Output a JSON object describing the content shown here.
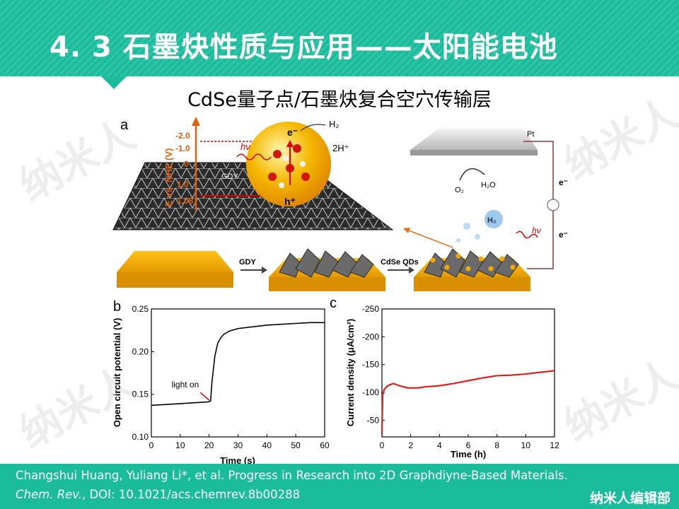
{
  "header": {
    "title": "4. 3  石墨炔性质与应用——太阳能电池"
  },
  "subtitle": "CdSe量子点/石墨炔复合空穴传输层",
  "watermark": "纳米人",
  "schematic": {
    "panel_label": "a",
    "axis_label": "E vs. NHE (V)",
    "levels": [
      "-2.0",
      "-1.0",
      "0",
      "1.0",
      "1.08"
    ],
    "gdy": "GDY",
    "hv": "hν",
    "electron": "e⁻",
    "hole": "h⁺",
    "h2": "H₂",
    "proton": "2H⁺",
    "pt": "Pt",
    "o2": "O₂",
    "h2o": "H₂O",
    "e_minus": "e⁻",
    "bubble_h2": "H₂",
    "step1": "GDY",
    "step2": "CdSe QDs"
  },
  "chart_data": [
    {
      "type": "line",
      "panel_label": "b",
      "xlabel": "Time (s)",
      "ylabel": "Open circuit potential (V)",
      "xlim": [
        0,
        60
      ],
      "ylim": [
        0.1,
        0.25
      ],
      "xticks": [
        0,
        10,
        20,
        30,
        40,
        50,
        60
      ],
      "yticks": [
        0.1,
        0.15,
        0.2,
        0.25
      ],
      "ytick_labels": [
        "0.10",
        "0.15",
        "0.20",
        "0.25"
      ],
      "annotation": "light on",
      "color": "#000000",
      "series": [
        {
          "x": [
            0,
            5,
            10,
            15,
            19.5,
            20.5,
            21,
            22,
            23,
            24,
            25,
            27,
            30,
            35,
            40,
            45,
            50,
            55,
            60
          ],
          "y": [
            0.137,
            0.138,
            0.139,
            0.14,
            0.141,
            0.142,
            0.165,
            0.195,
            0.21,
            0.216,
            0.22,
            0.224,
            0.227,
            0.229,
            0.231,
            0.232,
            0.233,
            0.234,
            0.234
          ]
        }
      ]
    },
    {
      "type": "line",
      "panel_label": "c",
      "xlabel": "Time (h)",
      "ylabel": "Current density (μA/cm²)",
      "xlim": [
        0,
        12
      ],
      "ylim": [
        -20,
        -250
      ],
      "xticks": [
        0,
        2,
        4,
        6,
        8,
        10,
        12
      ],
      "yticks": [
        -50,
        -100,
        -150,
        -200,
        -250
      ],
      "color": "#e0201b",
      "series": [
        {
          "x": [
            0,
            0.05,
            0.15,
            0.4,
            0.8,
            1.2,
            1.8,
            2.5,
            3,
            4,
            5,
            6,
            7,
            7.5,
            8,
            9,
            10,
            11,
            12
          ],
          "y": [
            -25,
            -95,
            -105,
            -112,
            -116,
            -112,
            -108,
            -108,
            -110,
            -112,
            -116,
            -121,
            -126,
            -128,
            -130,
            -131,
            -133,
            -136,
            -139
          ]
        }
      ]
    }
  ],
  "footer": {
    "authors": "Changshui  Huang,  Yuliang  Li*,  et  al.  Progress  in  Research  into  2D  Graphdiyne-Based  Materials.",
    "journal": "Chem. Rev.",
    "doi": ", DOI: 10.1021/acs.chemrev.8b00288",
    "brand": "纳米人编辑部"
  },
  "colors": {
    "accent": "#1abc9c",
    "curve_c": "#e0201b",
    "gold": "#f0a800"
  }
}
